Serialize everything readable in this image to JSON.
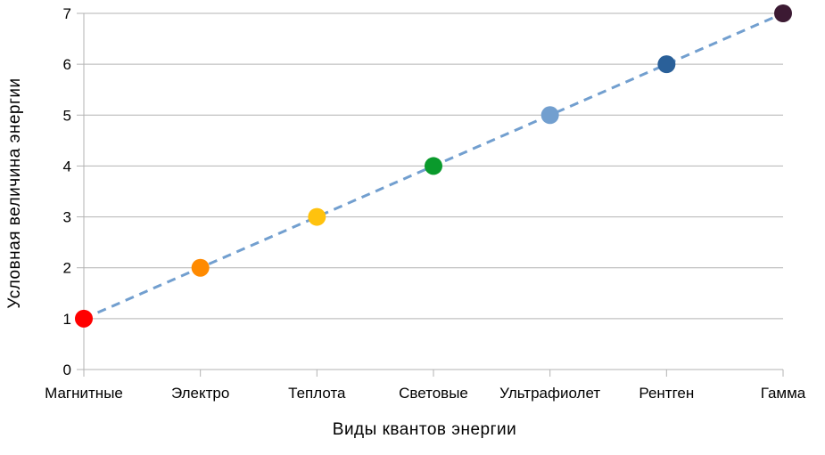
{
  "chart_data": {
    "type": "scatter",
    "title": "",
    "xlabel": "Виды квантов энергии",
    "ylabel": "Условная величина энергии",
    "categories": [
      "Магнитные",
      "Электро",
      "Теплота",
      "Световые",
      "Ультрафиолет",
      "Рентген",
      "Гамма"
    ],
    "values": [
      1,
      2,
      3,
      4,
      5,
      6,
      7
    ],
    "point_colors": [
      "#ff0000",
      "#ff8a00",
      "#ffc20e",
      "#0a9a2c",
      "#729fcf",
      "#2a6099",
      "#3c1a33"
    ],
    "ylim": [
      0,
      7
    ],
    "yticks": [
      "0",
      "1",
      "2",
      "3",
      "4",
      "5",
      "6",
      "7"
    ],
    "grid": true,
    "legend": "none",
    "trendline": {
      "style": "dashed",
      "color": "#729fcf"
    }
  }
}
